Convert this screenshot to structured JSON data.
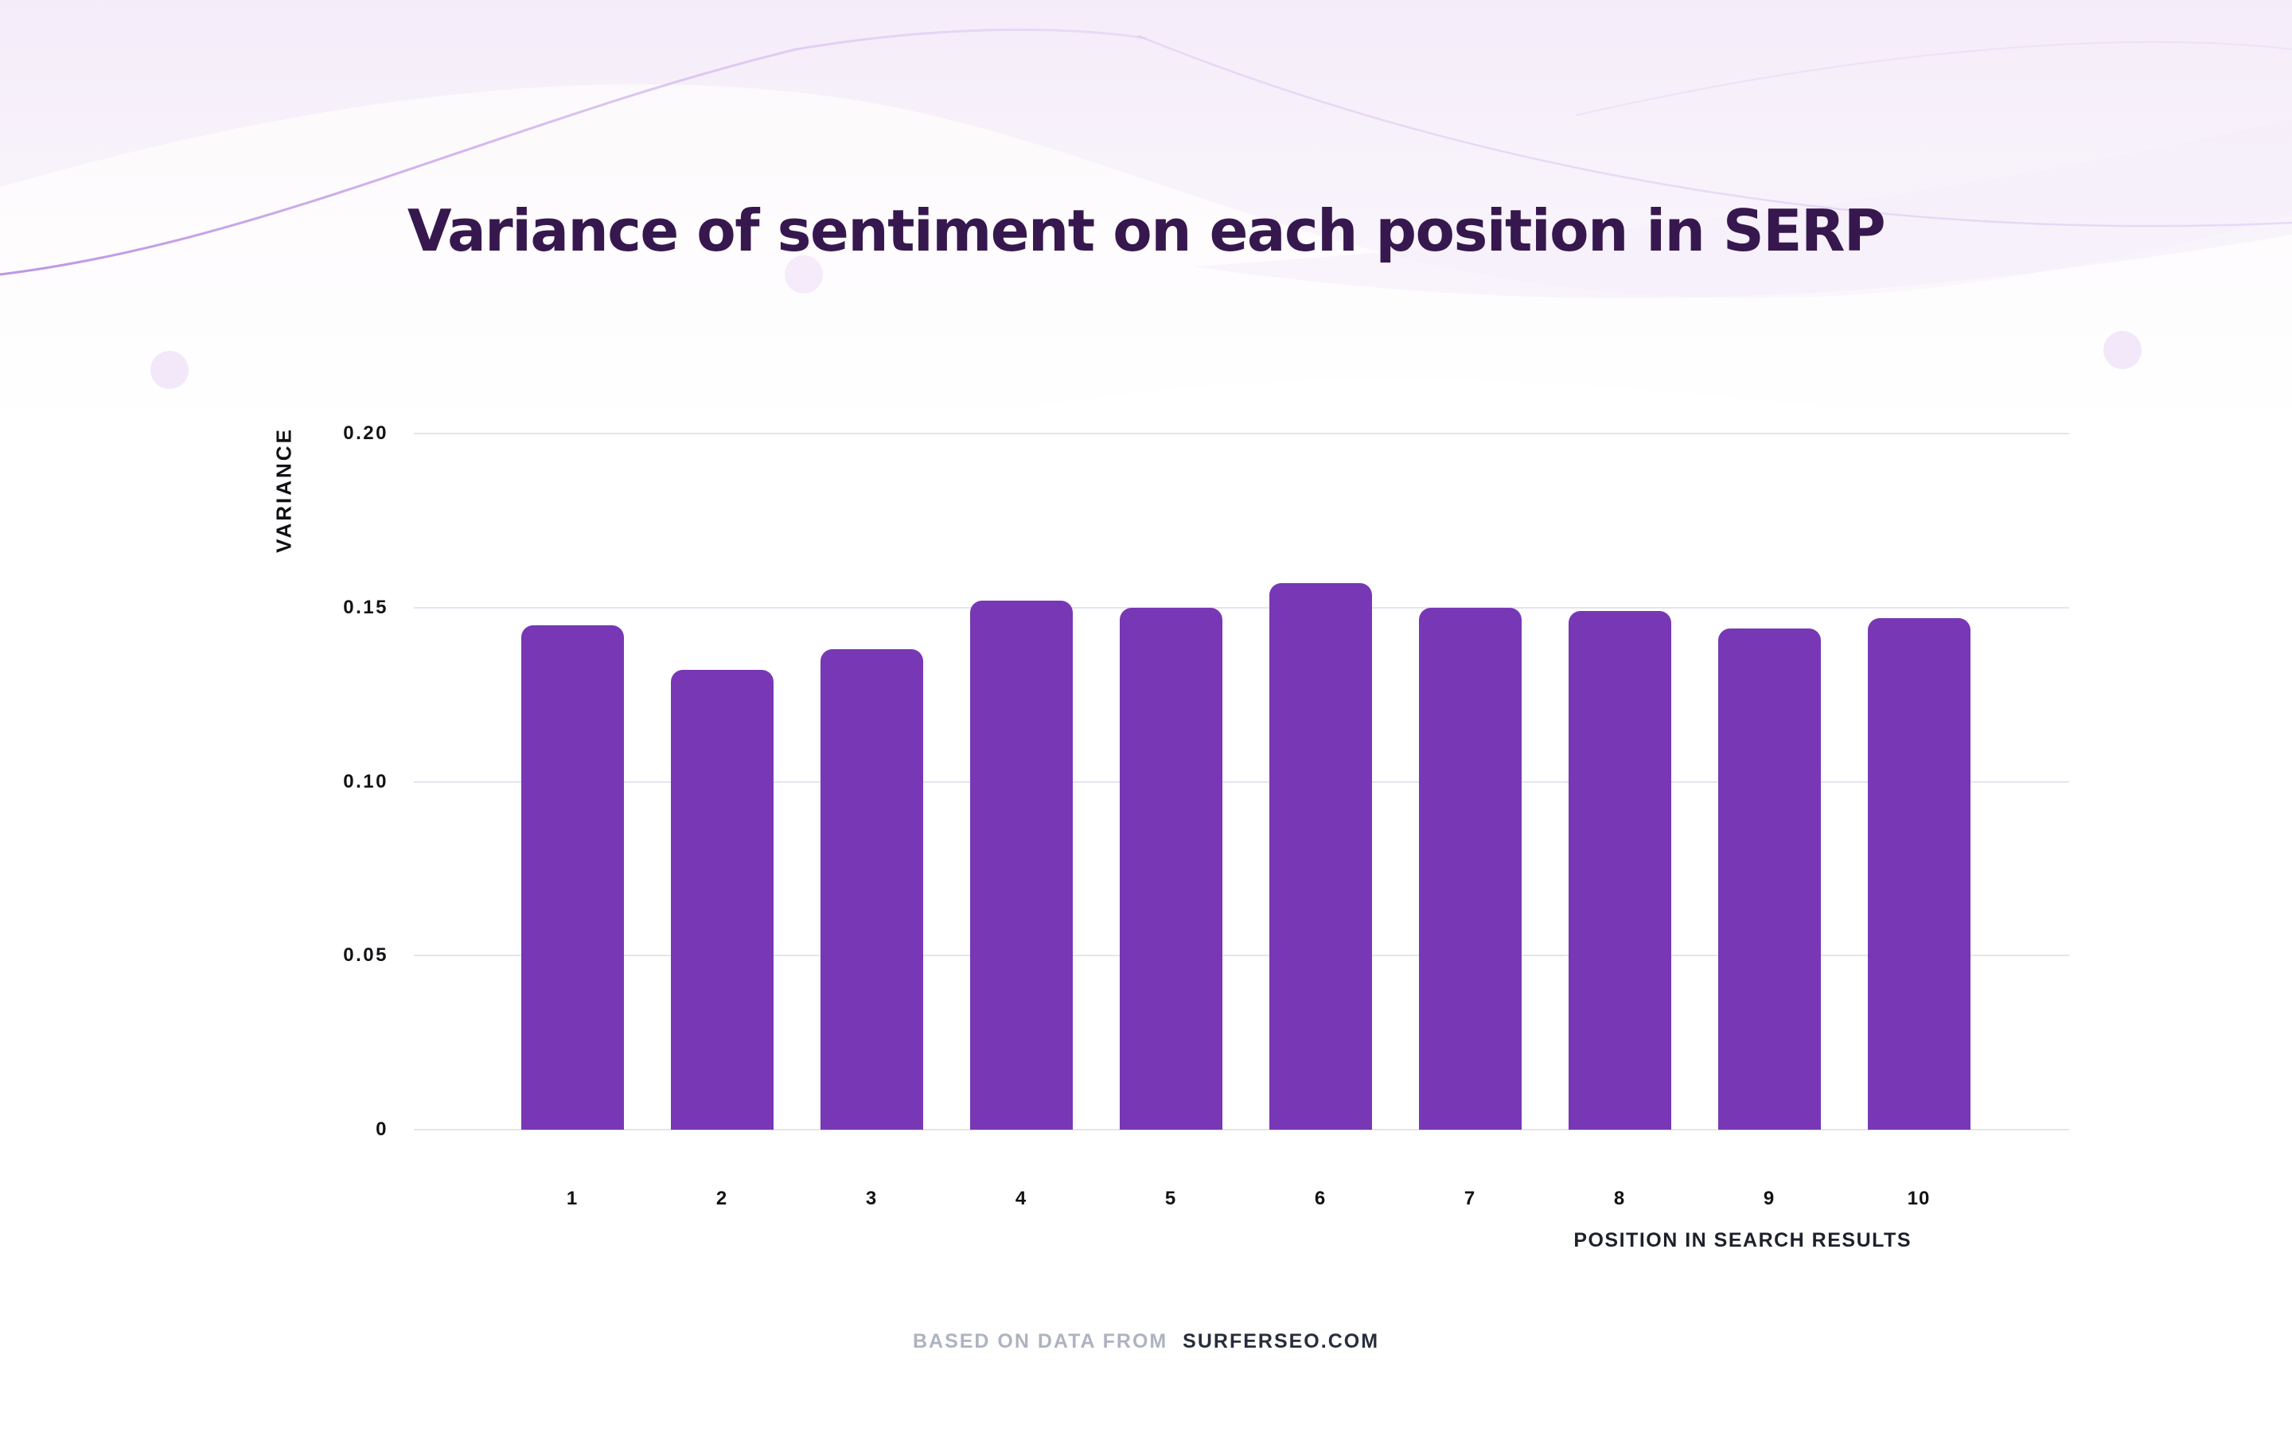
{
  "page": {
    "footer": {
      "prefix": "BASED ON DATA FROM",
      "source": "SURFERSEO.COM"
    }
  },
  "chart_data": {
    "type": "bar",
    "title": "Variance of sentiment on each position in SERP",
    "xlabel": "POSITION IN SEARCH RESULTS",
    "ylabel": "VARIANCE",
    "categories": [
      "1",
      "2",
      "3",
      "4",
      "5",
      "6",
      "7",
      "8",
      "9",
      "10"
    ],
    "values": [
      0.145,
      0.132,
      0.138,
      0.152,
      0.15,
      0.157,
      0.15,
      0.149,
      0.144,
      0.147
    ],
    "ylim": [
      0,
      0.2
    ],
    "yticks": [
      0,
      0.05,
      0.1,
      0.15,
      0.2
    ],
    "ytick_labels": [
      "0",
      "0.05",
      "0.10",
      "0.15",
      "0.20"
    ],
    "grid": true,
    "legend": "none"
  },
  "colors": {
    "bar": "#7838B5",
    "title": "#36184F",
    "gridline": "#E4E5F0",
    "tick_text": "#121316",
    "footer_prefix": "#ADB3BF",
    "footer_source": "#272D3A",
    "wave_fill": "#F3EBF9",
    "wave_line": "#B98AE0",
    "dot": "#F3E8FA"
  }
}
